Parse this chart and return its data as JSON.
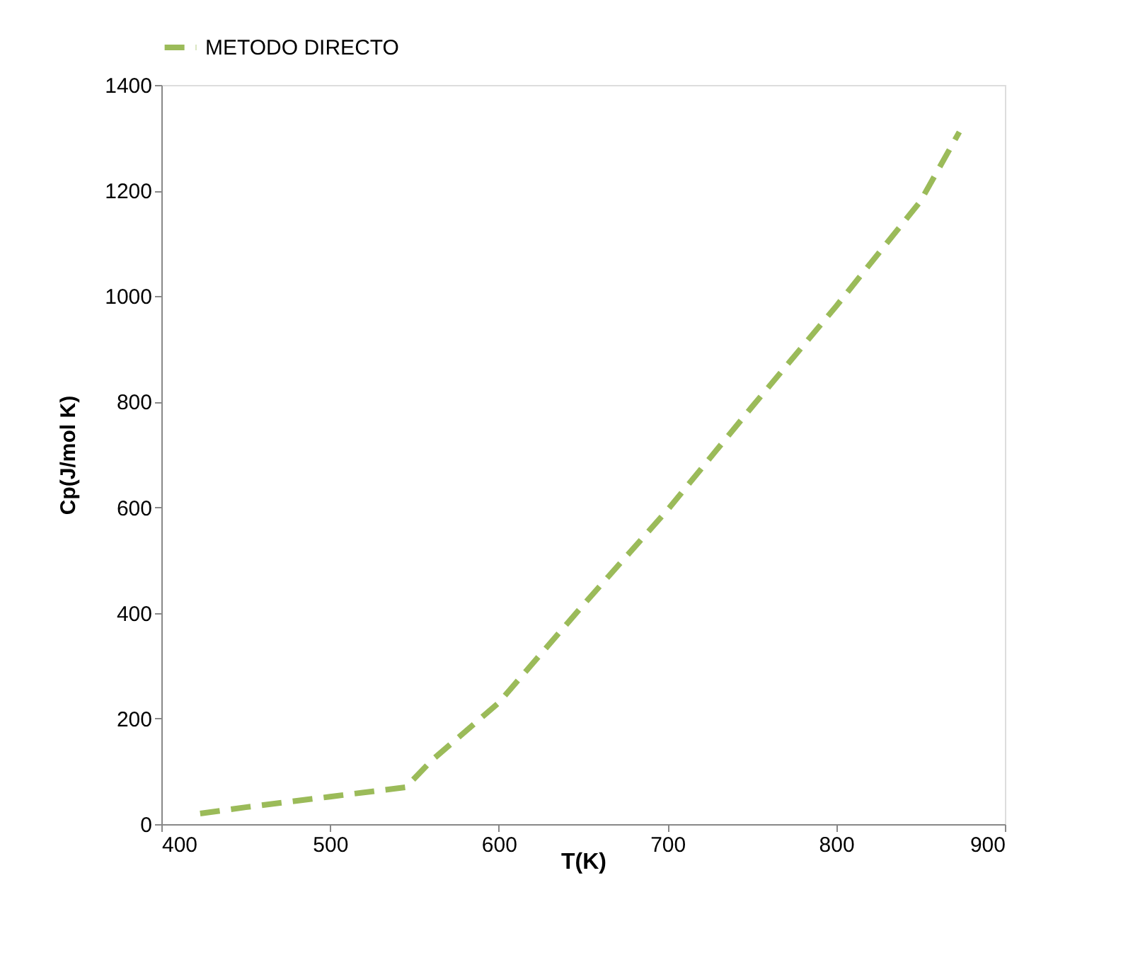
{
  "chart_data": {
    "type": "line",
    "xlabel": "T(K)",
    "ylabel": "Cp(J/mol  K)",
    "x": [
      423,
      450,
      500,
      545,
      560,
      600,
      650,
      700,
      750,
      800,
      850,
      873
    ],
    "series": [
      {
        "name": "METODO DIRECTO",
        "color": "#9bbb59",
        "values": [
          20,
          32,
          52,
          70,
          120,
          230,
          415,
          595,
          790,
          981,
          1180,
          1311
        ]
      }
    ],
    "xlim": [
      400,
      900
    ],
    "xticks": [
      400,
      500,
      600,
      700,
      800,
      900
    ],
    "ylim": [
      0,
      1400
    ],
    "yticks": [
      0,
      200,
      400,
      600,
      800,
      1000,
      1200,
      1400
    ],
    "grid": false,
    "legend": "top",
    "marker": "none",
    "line_style": "dashed"
  }
}
